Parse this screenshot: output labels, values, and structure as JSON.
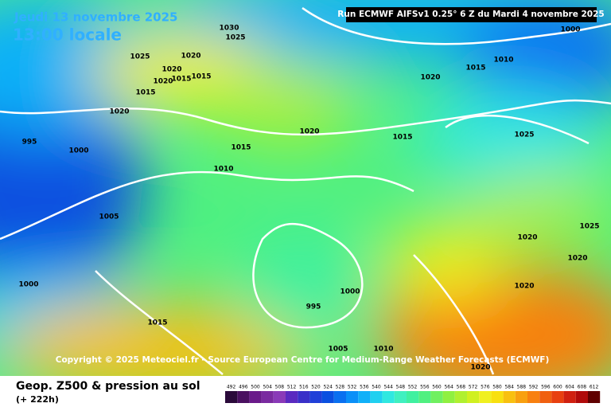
{
  "header": {
    "date": "Jeudi 13 novembre 2025",
    "time": "13:00 locale",
    "run": "Run ECMWF AIFSv1 0.25° 6 Z du Mardi 4 novembre 2025"
  },
  "copyright": "Copyright © 2025 Meteociel.fr - Source European Centre for Medium-Range Weather Forecasts (ECMWF)",
  "caption": {
    "title": "Geop. Z500 & pression au sol",
    "lead": "(+ 222h)"
  },
  "isobar_labels": [
    "1030",
    "1025",
    "1025",
    "1020",
    "1020",
    "1015",
    "1015",
    "1020",
    "1015",
    "1020",
    "995",
    "1000",
    "1015",
    "1010",
    "1020",
    "1020",
    "1015",
    "1010",
    "1000",
    "1015",
    "1025",
    "1005",
    "1025",
    "1020",
    "1020",
    "1020",
    "1000",
    "995",
    "1000",
    "1015",
    "1005",
    "1010",
    "1020"
  ],
  "colorbar": {
    "labels": [
      "492",
      "496",
      "500",
      "504",
      "508",
      "512",
      "516",
      "520",
      "524",
      "528",
      "532",
      "536",
      "540",
      "544",
      "548",
      "552",
      "556",
      "560",
      "564",
      "568",
      "572",
      "576",
      "580",
      "584",
      "588",
      "592",
      "596",
      "600",
      "604",
      "608",
      "612"
    ],
    "colors": [
      "#2a0a3a",
      "#4a1060",
      "#6a1a8a",
      "#7a2aa0",
      "#8a3ab8",
      "#5a2ac0",
      "#3a30c8",
      "#2040d8",
      "#0a50e0",
      "#0a70f0",
      "#0a90f8",
      "#10b0f8",
      "#20d0f0",
      "#30e8e0",
      "#40f0c0",
      "#40f0a0",
      "#50f080",
      "#70f060",
      "#90f040",
      "#b0f030",
      "#d0f020",
      "#f0f020",
      "#f8e010",
      "#f8c010",
      "#f8a010",
      "#f88010",
      "#f06010",
      "#e84010",
      "#d02010",
      "#b00a0a",
      "#600000"
    ]
  }
}
